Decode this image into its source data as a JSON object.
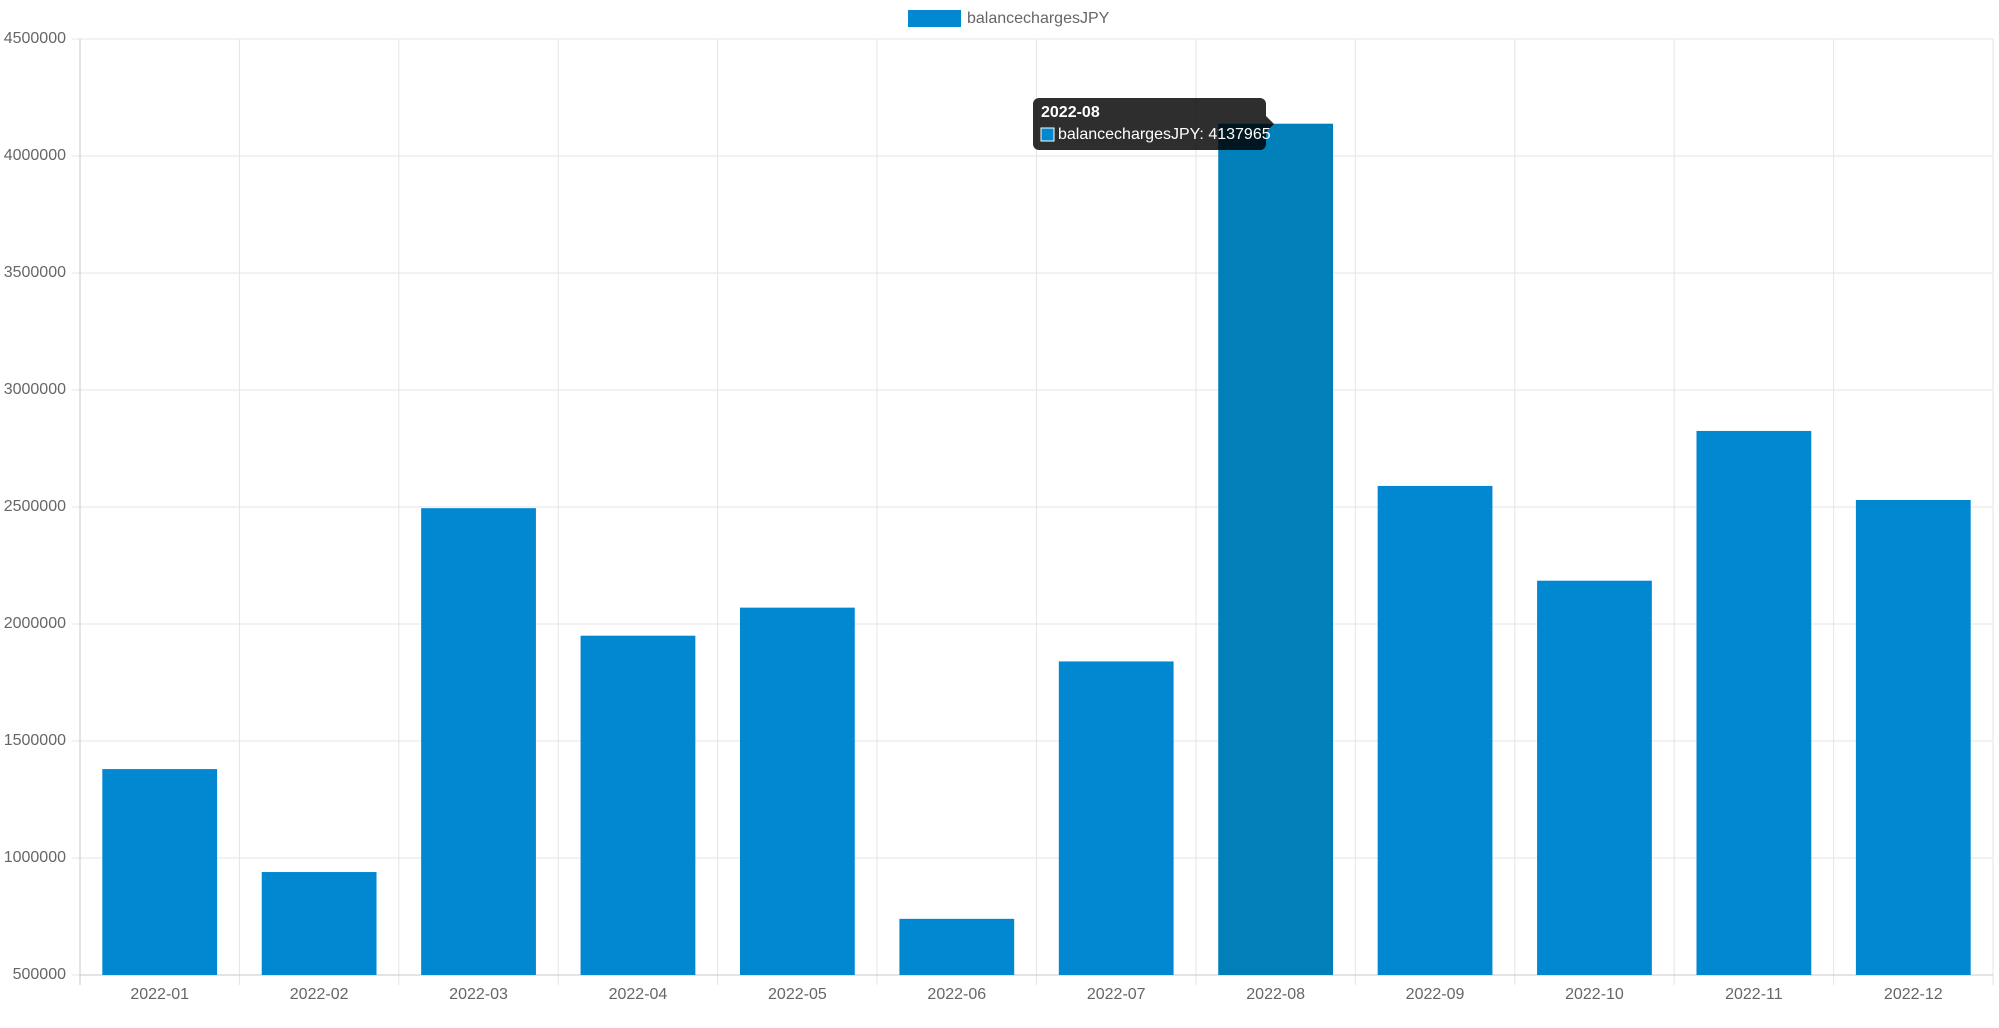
{
  "chart_data": {
    "type": "bar",
    "categories": [
      "2022-01",
      "2022-02",
      "2022-03",
      "2022-04",
      "2022-05",
      "2022-06",
      "2022-07",
      "2022-08",
      "2022-09",
      "2022-10",
      "2022-11",
      "2022-12"
    ],
    "series": [
      {
        "name": "balancechargesJPY",
        "color": "#0288d1",
        "hover_color": "#007fb9",
        "values": [
          1380000,
          940000,
          2495000,
          1950000,
          2070000,
          740000,
          1840000,
          4137965,
          2590000,
          2185000,
          2825000,
          2530000
        ]
      }
    ],
    "ylim": [
      500000,
      4500000
    ],
    "yticks": [
      500000,
      1000000,
      1500000,
      2000000,
      2500000,
      3000000,
      3500000,
      4000000,
      4500000
    ],
    "grid": true,
    "legend": "top",
    "tooltip": {
      "title": "2022-08",
      "label": "balancechargesJPY: 4137965"
    }
  }
}
